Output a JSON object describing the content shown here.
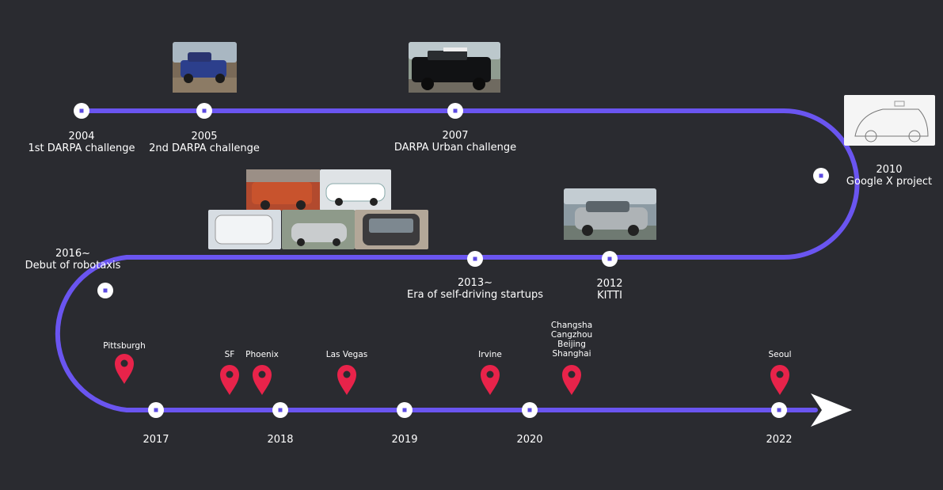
{
  "colors": {
    "background": "#2a2b30",
    "path": "#6a55f0",
    "node": "#ffffff",
    "node_core": "#5b49e0",
    "pin": "#e8234a",
    "arrow": "#ffffff"
  },
  "milestones": [
    {
      "id": "2004",
      "year": "2004",
      "label": "1st DARPA challenge"
    },
    {
      "id": "2005",
      "year": "2005",
      "label": "2nd DARPA challenge"
    },
    {
      "id": "2007",
      "year": "2007",
      "label": "DARPA Urban challenge"
    },
    {
      "id": "2010",
      "year": "2010",
      "label": "Google X project"
    },
    {
      "id": "2012",
      "year": "2012",
      "label": "KITTI"
    },
    {
      "id": "2013",
      "year": "2013~",
      "label": "Era of self-driving startups"
    },
    {
      "id": "2016",
      "year": "2016~",
      "label": "Debut of robotaxis"
    }
  ],
  "years_bottom": [
    "2017",
    "2018",
    "2019",
    "2020",
    "2022"
  ],
  "cities": [
    {
      "id": "pittsburgh",
      "label": "Pittsburgh"
    },
    {
      "id": "sf",
      "label": "SF"
    },
    {
      "id": "phoenix",
      "label": "Phoenix"
    },
    {
      "id": "lasvegas",
      "label": "Las Vegas"
    },
    {
      "id": "irvine",
      "label": "Irvine"
    },
    {
      "id": "china",
      "label": "Changsha\nCangzhou\nBeijing\nShanghai"
    },
    {
      "id": "seoul",
      "label": "Seoul"
    }
  ],
  "icons": {
    "pin": "location-pin-icon",
    "arrow": "arrow-right-icon",
    "node": "timeline-node-icon"
  }
}
